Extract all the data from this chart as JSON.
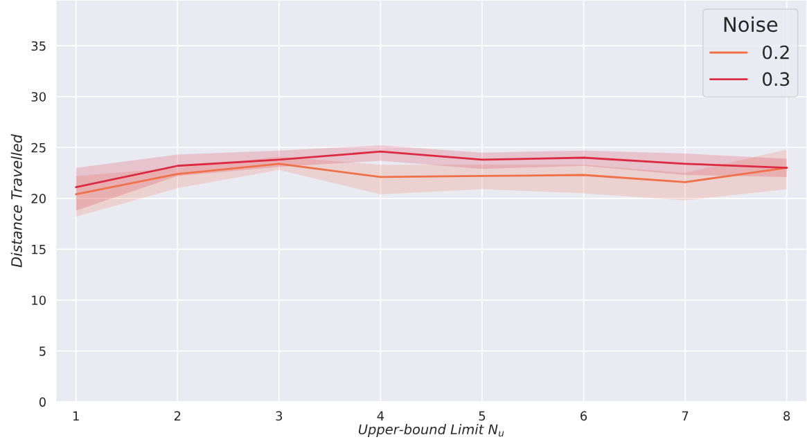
{
  "chart_data": {
    "type": "line",
    "xlabel": "Upper-bound Limit N$_{u}$",
    "ylabel": "Distance Travelled",
    "legend_title": "Noise",
    "x": [
      1,
      2,
      3,
      4,
      5,
      6,
      7,
      8
    ],
    "series": [
      {
        "name": "0.2",
        "color": "#f07048",
        "values": [
          20.4,
          22.4,
          23.4,
          22.1,
          22.2,
          22.3,
          21.6,
          23.0
        ],
        "lower": [
          18.2,
          21.0,
          22.8,
          20.4,
          20.9,
          20.5,
          19.8,
          20.9
        ],
        "upper": [
          22.2,
          23.0,
          24.1,
          23.3,
          23.3,
          23.3,
          22.5,
          24.8
        ]
      },
      {
        "name": "0.3",
        "color": "#dc2a41",
        "values": [
          21.1,
          23.2,
          23.8,
          24.6,
          23.8,
          24.0,
          23.4,
          23.0
        ],
        "lower": [
          18.8,
          22.2,
          23.1,
          23.7,
          22.9,
          23.2,
          22.3,
          22.1
        ],
        "upper": [
          23.0,
          24.3,
          24.7,
          25.2,
          24.5,
          24.7,
          24.4,
          23.9
        ]
      }
    ],
    "xlim": [
      0.8,
      8.2
    ],
    "ylim": [
      0,
      39.5
    ],
    "xticks": [
      1,
      2,
      3,
      4,
      5,
      6,
      7,
      8
    ],
    "yticks": [
      0,
      5,
      10,
      15,
      20,
      25,
      30,
      35
    ],
    "grid": true,
    "legend": "top right",
    "line_style": "solid",
    "marker": "none"
  }
}
